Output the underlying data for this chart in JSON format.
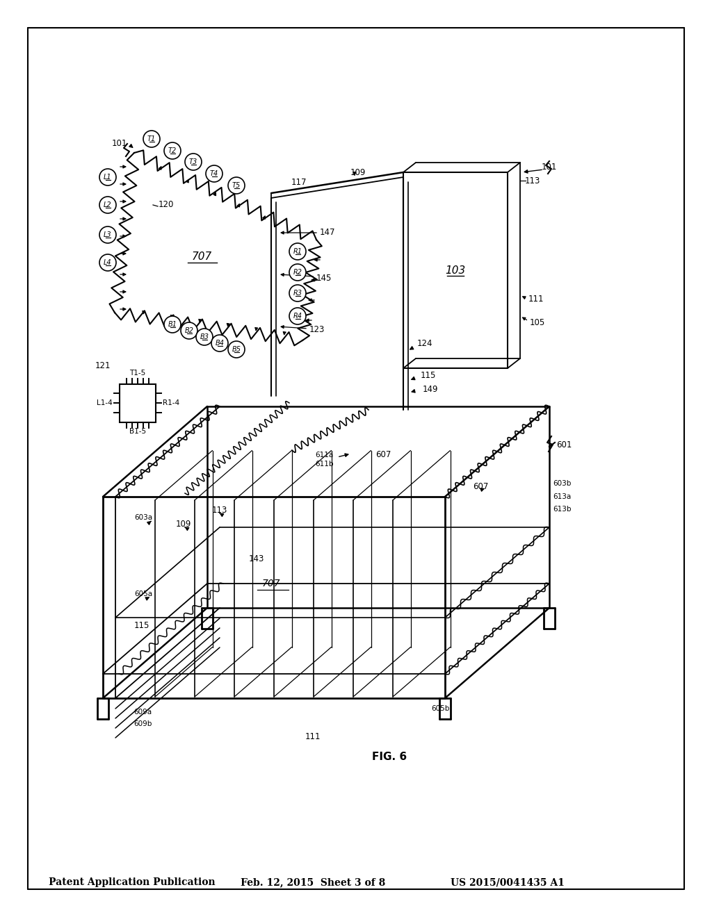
{
  "header_left": "Patent Application Publication",
  "header_center": "Feb. 12, 2015  Sheet 3 of 8",
  "header_right": "US 2015/0041435 A1",
  "figure_label": "FIG. 6",
  "bg_color": "#ffffff",
  "line_color": "#000000"
}
